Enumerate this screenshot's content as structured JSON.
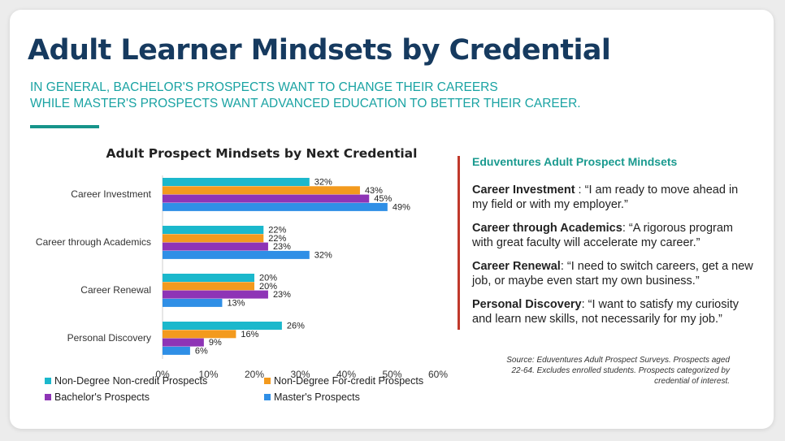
{
  "slide": {
    "title": "Adult Learner Mindsets by Credential",
    "subtitle_lines": [
      "IN GENERAL, BACHELOR'S PROSPECTS WANT TO CHANGE THEIR CAREERS",
      "WHILE MASTER'S PROSPECTS WANT ADVANCED EDUCATION TO BETTER THEIR CAREER."
    ]
  },
  "definitions": {
    "heading": "Eduventures Adult Prospect Mindsets",
    "items": [
      {
        "term": "Career Investment",
        "sep": " : ",
        "text": "“I am ready to move ahead in my field or with my employer.”"
      },
      {
        "term": "Career through Academics",
        "sep": ": ",
        "text": "“A rigorous program with great faculty will accelerate my career.”"
      },
      {
        "term": "Career Renewal",
        "sep": ": ",
        "text": "“I need to switch careers, get a new job, or maybe even start my own business.”"
      },
      {
        "term": "Personal Discovery",
        "sep": ": ",
        "text": "“I want to satisfy my curiosity and learn new skills, not necessarily for my job.”"
      }
    ]
  },
  "source": "Source: Eduventures Adult Prospect Surveys. Prospects aged 22-64. Excludes enrolled students. Prospects categorized by credential of interest.",
  "chart_data": {
    "type": "bar",
    "orientation": "horizontal",
    "title": "Adult Prospect Mindsets by Next Credential",
    "categories": [
      "Career Investment",
      "Career through Academics",
      "Career Renewal",
      "Personal Discovery"
    ],
    "series": [
      {
        "name": "Non-Degree Non-credit Prospects",
        "color": "#1bb8cc",
        "values": [
          32,
          22,
          20,
          26
        ]
      },
      {
        "name": "Non-Degree For-credit Prospects",
        "color": "#f39a1e",
        "values": [
          43,
          22,
          20,
          16
        ]
      },
      {
        "name": "Bachelor's Prospects",
        "color": "#8e34b6",
        "values": [
          45,
          23,
          23,
          9
        ]
      },
      {
        "name": "Master's Prospects",
        "color": "#2f8fe6",
        "values": [
          49,
          32,
          13,
          6
        ]
      }
    ],
    "xlim": [
      0,
      60
    ],
    "xticks": [
      0,
      10,
      20,
      30,
      40,
      50,
      60
    ],
    "tick_suffix": "%",
    "value_suffix": "%",
    "legend_position": "bottom",
    "grid": false
  }
}
